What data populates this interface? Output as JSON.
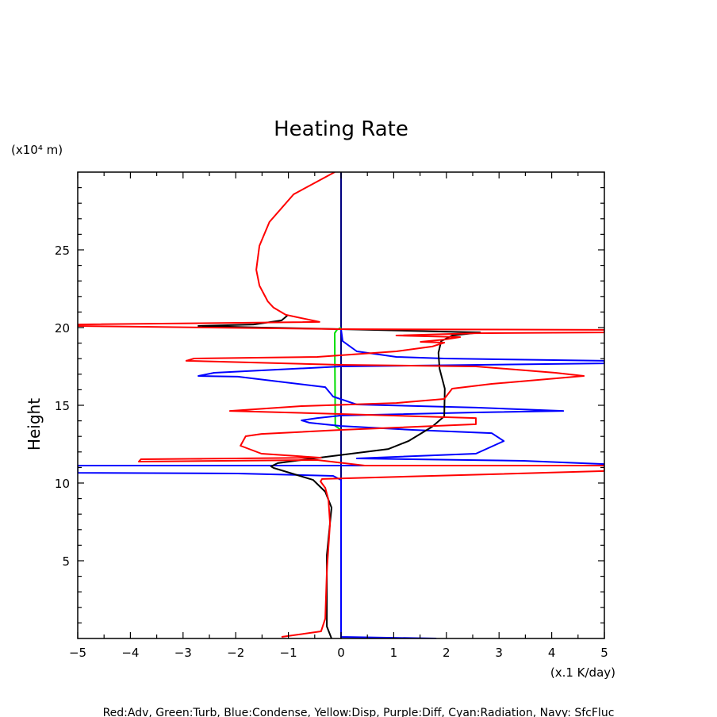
{
  "chart_data": {
    "type": "line",
    "title": "Heating Rate",
    "ylabel": "Height",
    "yunit_label": "(x10⁴ m)",
    "xlabel": "(x.1 K/day)",
    "xlim": [
      -5,
      5
    ],
    "ylim": [
      0,
      30
    ],
    "xticks": [
      "−5",
      "−4",
      "−3",
      "−2",
      "−1",
      "0",
      "1",
      "2",
      "3",
      "4",
      "5"
    ],
    "xtick_values": [
      -5,
      -4,
      -3,
      -2,
      -1,
      0,
      1,
      2,
      3,
      4,
      5
    ],
    "yticks": [
      "5",
      "10",
      "15",
      "20",
      "25"
    ],
    "ytick_values": [
      5,
      10,
      15,
      20,
      25
    ],
    "grid": false,
    "legend_note": "Red:Adv, Green:Turb, Blue:Condense, Yellow:Disp, Purple:Diff, Cyan:Radiation, Navy: SfcFluc",
    "series": [
      {
        "name": "Navy",
        "color": "#000080",
        "points": [
          [
            0,
            0
          ],
          [
            0,
            30
          ]
        ]
      },
      {
        "name": "Green",
        "color": "#00dd00",
        "points": [
          [
            0,
            13.42
          ],
          [
            -0.11,
            13.67
          ],
          [
            -0.12,
            19.64
          ],
          [
            -0.08,
            19.85
          ],
          [
            0,
            20.0
          ]
        ]
      },
      {
        "name": "Blue",
        "color": "#0000ff",
        "points": [
          [
            1.81,
            0
          ],
          [
            0,
            0.1
          ],
          [
            0,
            10.0
          ],
          [
            0,
            10.2
          ],
          [
            -0.15,
            10.46
          ],
          [
            -1.96,
            10.61
          ],
          [
            -5,
            10.66
          ],
          [
            -5,
            11.12
          ],
          [
            5,
            11.12
          ],
          [
            5,
            11.22
          ],
          [
            3.46,
            11.43
          ],
          [
            0.3,
            11.58
          ],
          [
            2.56,
            11.89
          ],
          [
            3.09,
            12.7
          ],
          [
            2.86,
            13.21
          ],
          [
            1.36,
            13.42
          ],
          [
            0,
            13.67
          ],
          [
            -0.6,
            13.88
          ],
          [
            -0.75,
            14.03
          ],
          [
            -0.45,
            14.18
          ],
          [
            0,
            14.34
          ],
          [
            2.56,
            14.54
          ],
          [
            4.22,
            14.64
          ],
          [
            2.56,
            14.85
          ],
          [
            0.3,
            15.05
          ],
          [
            -0.15,
            15.56
          ],
          [
            -0.3,
            16.17
          ],
          [
            -1.96,
            16.84
          ],
          [
            -2.71,
            16.89
          ],
          [
            -2.41,
            17.09
          ],
          [
            0,
            17.5
          ],
          [
            5,
            17.7
          ],
          [
            5,
            17.86
          ],
          [
            1.96,
            18.01
          ],
          [
            1.05,
            18.11
          ],
          [
            0.3,
            18.47
          ],
          [
            0.03,
            19.13
          ],
          [
            0,
            19.9
          ]
        ]
      },
      {
        "name": "Black",
        "color": "#000000",
        "points": [
          [
            -0.18,
            0
          ],
          [
            -0.27,
            0.77
          ],
          [
            -0.27,
            5.36
          ],
          [
            -0.18,
            8.42
          ],
          [
            -0.3,
            9.44
          ],
          [
            -0.53,
            10.2
          ],
          [
            -1.28,
            10.97
          ],
          [
            -1.33,
            11.07
          ],
          [
            -1.2,
            11.28
          ],
          [
            -0.3,
            11.68
          ],
          [
            0.9,
            12.19
          ],
          [
            1.28,
            12.7
          ],
          [
            1.73,
            13.62
          ],
          [
            1.96,
            14.29
          ],
          [
            1.97,
            16.07
          ],
          [
            1.87,
            17.35
          ],
          [
            1.85,
            18.37
          ],
          [
            1.9,
            19.13
          ],
          [
            2.11,
            19.49
          ],
          [
            2.64,
            19.69
          ],
          [
            1.96,
            19.74
          ],
          [
            0,
            19.9
          ],
          [
            -1.51,
            20.0
          ],
          [
            -2.71,
            20.1
          ],
          [
            -1.66,
            20.2
          ],
          [
            -1.13,
            20.46
          ],
          [
            -1.02,
            20.77
          ]
        ]
      },
      {
        "name": "Red",
        "color": "#ff0000",
        "points": [
          [
            -1.13,
            0.1
          ],
          [
            -0.38,
            0.46
          ],
          [
            -0.3,
            1.28
          ],
          [
            -0.27,
            4.34
          ],
          [
            -0.21,
            7.4
          ],
          [
            -0.24,
            8.93
          ],
          [
            -0.3,
            9.69
          ],
          [
            -0.39,
            10.1
          ],
          [
            -0.36,
            10.26
          ],
          [
            5,
            10.77
          ],
          [
            5,
            11.12
          ],
          [
            0.45,
            11.12
          ],
          [
            -0.45,
            11.48
          ],
          [
            -3.84,
            11.38
          ],
          [
            -3.8,
            11.53
          ],
          [
            -0.38,
            11.63
          ],
          [
            -1.51,
            11.89
          ],
          [
            -1.91,
            12.4
          ],
          [
            -1.81,
            13.01
          ],
          [
            -1.51,
            13.16
          ],
          [
            0,
            13.42
          ],
          [
            2.56,
            13.78
          ],
          [
            2.56,
            14.18
          ],
          [
            0,
            14.44
          ],
          [
            -2.11,
            14.64
          ],
          [
            -0.75,
            14.95
          ],
          [
            1.05,
            15.15
          ],
          [
            1.96,
            15.41
          ],
          [
            2.11,
            16.07
          ],
          [
            2.86,
            16.38
          ],
          [
            4.61,
            16.89
          ],
          [
            4.07,
            17.09
          ],
          [
            2.56,
            17.5
          ],
          [
            0,
            17.6
          ],
          [
            -2.94,
            17.86
          ],
          [
            -2.79,
            18.01
          ],
          [
            -0.45,
            18.11
          ],
          [
            1.05,
            18.47
          ],
          [
            1.73,
            18.78
          ],
          [
            1.96,
            19.03
          ],
          [
            1.51,
            19.08
          ],
          [
            1.96,
            19.23
          ],
          [
            2.26,
            19.39
          ],
          [
            1.05,
            19.49
          ],
          [
            2.56,
            19.64
          ],
          [
            5,
            19.69
          ],
          [
            5,
            19.85
          ],
          [
            0,
            19.9
          ],
          [
            -5,
            20.1
          ],
          [
            -5,
            20.2
          ],
          [
            -0.41,
            20.36
          ],
          [
            -1.05,
            20.82
          ],
          [
            -1.28,
            21.28
          ],
          [
            -1.39,
            21.68
          ],
          [
            -1.55,
            22.7
          ],
          [
            -1.61,
            23.72
          ],
          [
            -1.55,
            25.26
          ],
          [
            -1.36,
            26.79
          ],
          [
            -0.9,
            28.57
          ],
          [
            -0.12,
            30.0
          ]
        ]
      }
    ]
  }
}
